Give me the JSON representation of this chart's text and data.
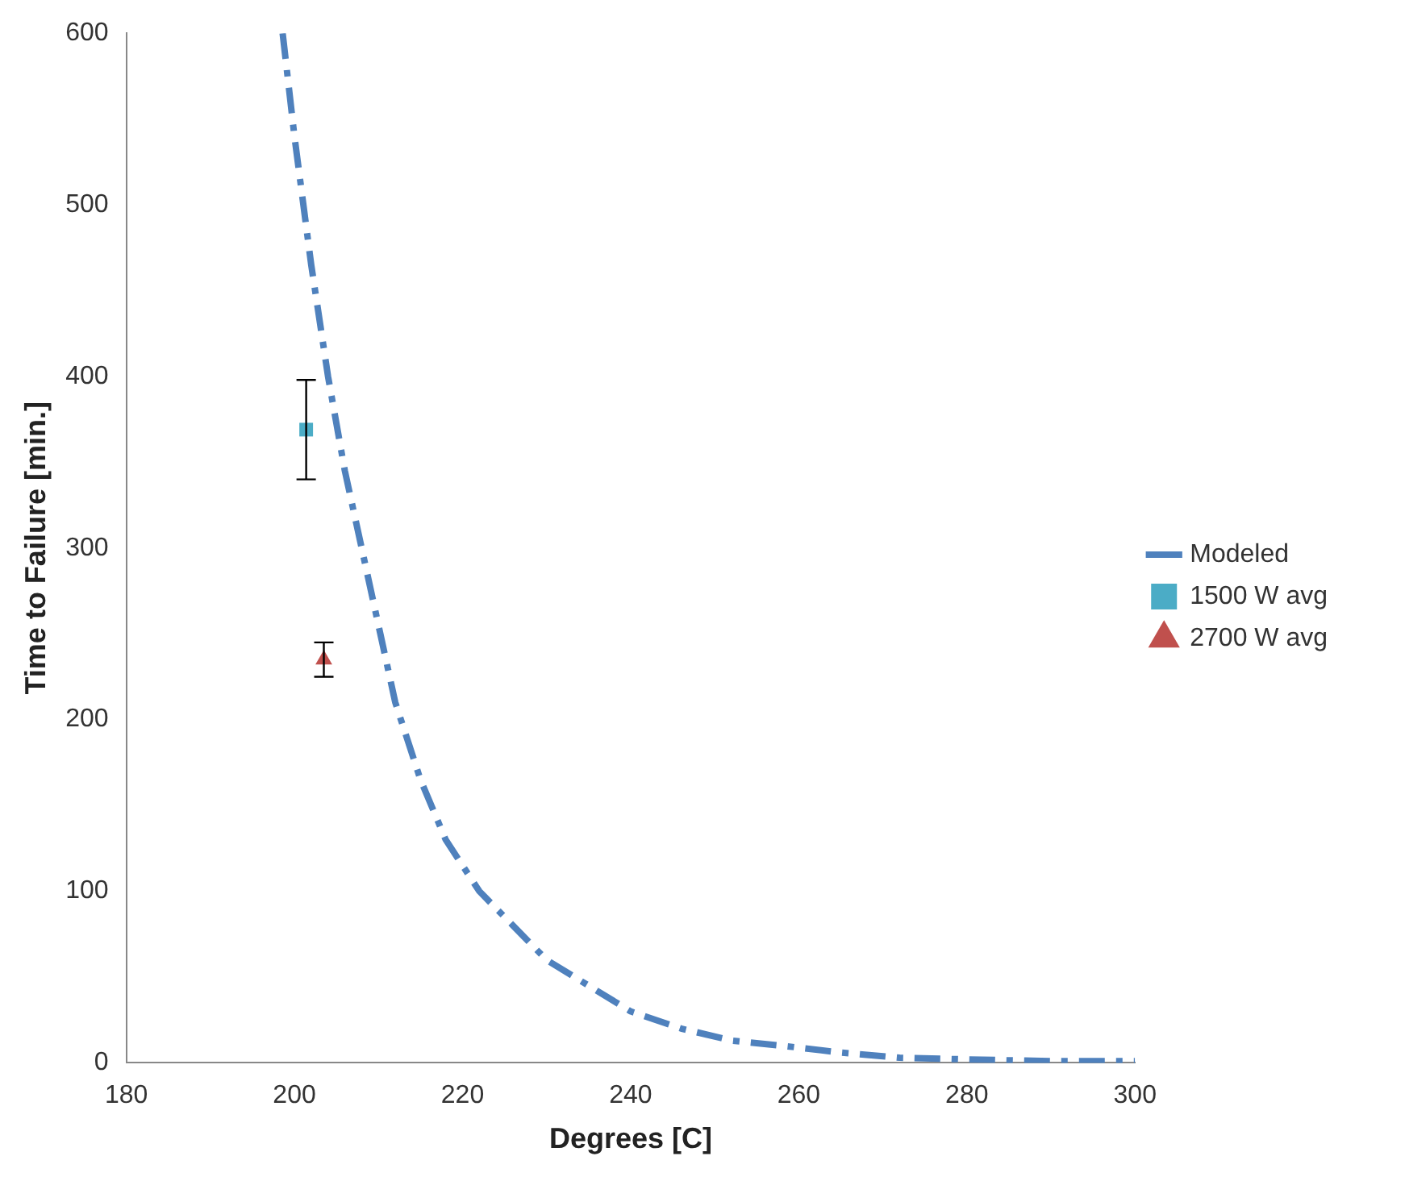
{
  "chart_data": {
    "type": "line",
    "xlabel": "Degrees [C]",
    "ylabel": "Time to Failure [min.]",
    "xlim": [
      180,
      300
    ],
    "xticks": [
      180,
      200,
      220,
      240,
      260,
      280,
      300
    ],
    "ylim": [
      0,
      600
    ],
    "yticks": [
      0,
      100,
      200,
      300,
      400,
      500,
      600
    ],
    "grid": false,
    "legend": "right",
    "series": [
      {
        "name": "Modeled",
        "color": "#4f81bd",
        "marker": "none",
        "line_style": "dashed",
        "x": [
          198.6,
          200,
          202,
          204,
          206,
          208,
          210,
          212,
          215,
          218,
          222,
          226,
          230,
          235,
          240,
          246,
          252,
          258,
          265,
          272,
          280,
          290,
          300
        ],
        "values": [
          600,
          540,
          465,
          400,
          345,
          300,
          255,
          210,
          165,
          130,
          100,
          80,
          60,
          45,
          30,
          20,
          13,
          10,
          6,
          3,
          2,
          1,
          1
        ]
      },
      {
        "name": "1500 W avg",
        "type": "scatter",
        "color": "#4bacc6",
        "marker": "square",
        "x": [
          201.4
        ],
        "values": [
          369
        ],
        "errors": [
          29
        ]
      },
      {
        "name": "2700 W avg",
        "type": "scatter",
        "color": "#c0504d",
        "marker": "triangle",
        "x": [
          203.5
        ],
        "values": [
          235
        ],
        "errors": [
          10
        ]
      }
    ]
  }
}
